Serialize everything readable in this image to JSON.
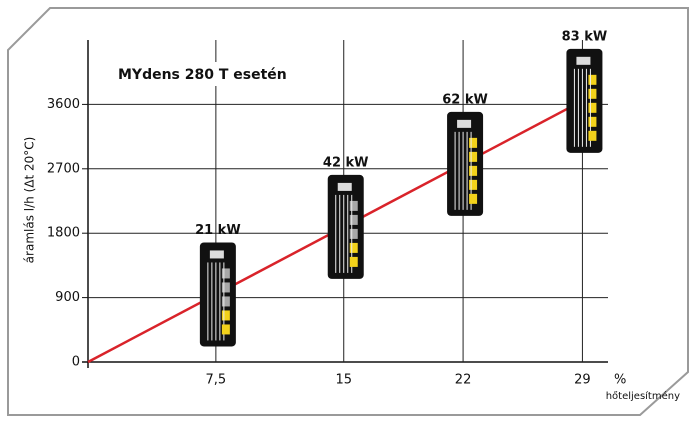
{
  "chart_data": {
    "type": "line",
    "title": "MYdens 280 T esetén",
    "ylabel": "áramlás l/h (Δt 20°C)",
    "xunit": "%",
    "xlabel": "hőteljesítmény",
    "x": [
      0,
      29
    ],
    "series": [
      {
        "color": "#d9232a",
        "values": [
          0,
          3650
        ]
      }
    ],
    "annotations": [
      "21 kW",
      "42 kW",
      "62 kW",
      "83 kW"
    ],
    "xlim": [
      0,
      30.5
    ],
    "xticks": [
      {
        "value": 7.5,
        "label": "7,5"
      },
      15,
      22,
      29
    ],
    "ylim": [
      0,
      4500
    ],
    "yticks": [
      0,
      900,
      1800,
      2700,
      3600
    ],
    "grid": true
  }
}
